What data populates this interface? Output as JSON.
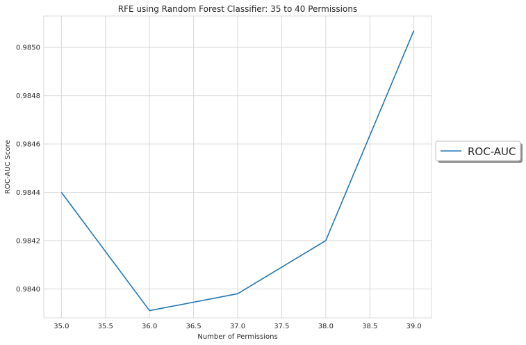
{
  "chart_data": {
    "type": "line",
    "title": "RFE using Random Forest Classifier: 35 to 40 Permissions",
    "xlabel": "Number of Permissions",
    "ylabel": "ROC-AUC Score",
    "xlim": [
      34.8,
      39.2
    ],
    "ylim": [
      0.98388,
      0.98513
    ],
    "xticks": [
      35.0,
      35.5,
      36.0,
      36.5,
      37.0,
      37.5,
      38.0,
      38.5,
      39.0
    ],
    "xtick_labels": [
      "35.0",
      "35.5",
      "36.0",
      "36.5",
      "37.0",
      "37.5",
      "38.0",
      "38.5",
      "39.0"
    ],
    "yticks": [
      0.984,
      0.9842,
      0.9844,
      0.9846,
      0.9848,
      0.985
    ],
    "ytick_labels": [
      "0.9840",
      "0.9842",
      "0.9844",
      "0.9846",
      "0.9848",
      "0.9850"
    ],
    "grid": true,
    "legend_position": "center-right outside",
    "series": [
      {
        "name": "ROC-AUC",
        "color": "#1f77b4",
        "x": [
          35,
          36,
          37,
          38,
          39
        ],
        "y": [
          0.9844,
          0.98391,
          0.98398,
          0.9842,
          0.98507
        ]
      }
    ]
  }
}
